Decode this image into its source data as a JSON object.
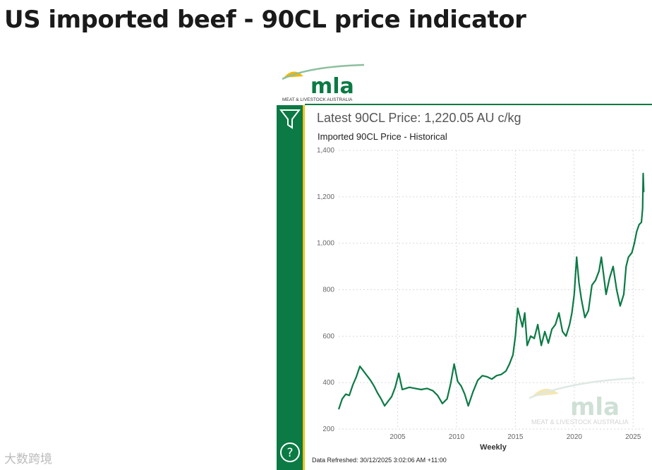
{
  "page": {
    "title": "US imported beef - 90CL price indicator"
  },
  "logo": {
    "name": "mla",
    "subtitle": "MEAT & LIVESTOCK AUSTRALIA"
  },
  "report": {
    "latest_price": "Latest 90CL Price: 1,220.05 AU c/kg",
    "chart_title": "Imported 90CL Price - Historical",
    "refreshed": "Data Refreshed: 30/12/2025 3:02:06 AM +11:00"
  },
  "watermark": {
    "text": "大数跨境"
  },
  "colors": {
    "brand_green": "#0b7a44",
    "accent_yellow": "#f2c318",
    "line": "#0b7a44"
  },
  "icons": {
    "filter": "filter-icon",
    "help": "help-icon"
  },
  "chart_data": {
    "type": "line",
    "title": "Imported 90CL Price - Historical",
    "xlabel": "Weekly",
    "ylabel": "",
    "ylim": [
      200,
      1400
    ],
    "xlim": [
      2000.0,
      2026.0
    ],
    "xticks": [
      2005,
      2010,
      2015,
      2020,
      2025
    ],
    "xtick_labels": [
      "2005",
      "2010",
      "2015",
      "2020",
      "2025"
    ],
    "yticks": [
      200,
      400,
      600,
      800,
      1000,
      1200,
      1400
    ],
    "ytick_labels": [
      "200",
      "400",
      "600",
      "800",
      "1,000",
      "1,200",
      "1,400"
    ],
    "grid": true,
    "series": [
      {
        "name": "90CL Price",
        "x": [
          2000.0,
          2000.3,
          2000.6,
          2000.9,
          2001.2,
          2001.5,
          2001.8,
          2002.1,
          2002.4,
          2002.7,
          2003.0,
          2003.3,
          2003.6,
          2003.9,
          2004.2,
          2004.5,
          2004.8,
          2005.1,
          2005.4,
          2005.7,
          2006.0,
          2006.5,
          2007.0,
          2007.5,
          2008.0,
          2008.4,
          2008.8,
          2009.2,
          2009.5,
          2009.8,
          2010.1,
          2010.4,
          2010.7,
          2011.0,
          2011.4,
          2011.8,
          2012.2,
          2012.6,
          2013.0,
          2013.4,
          2013.8,
          2014.2,
          2014.5,
          2014.8,
          2015.0,
          2015.2,
          2015.4,
          2015.6,
          2015.8,
          2016.0,
          2016.3,
          2016.6,
          2016.9,
          2017.2,
          2017.5,
          2017.8,
          2018.1,
          2018.4,
          2018.7,
          2019.0,
          2019.3,
          2019.6,
          2019.8,
          2020.0,
          2020.2,
          2020.4,
          2020.6,
          2020.9,
          2021.2,
          2021.5,
          2021.8,
          2022.1,
          2022.3,
          2022.5,
          2022.7,
          2023.0,
          2023.3,
          2023.6,
          2023.9,
          2024.2,
          2024.4,
          2024.6,
          2024.9,
          2025.1,
          2025.3,
          2025.5,
          2025.7,
          2025.8,
          2025.85,
          2025.9
        ],
        "values": [
          285,
          330,
          350,
          345,
          390,
          425,
          470,
          450,
          430,
          410,
          385,
          355,
          330,
          300,
          320,
          340,
          380,
          440,
          370,
          375,
          380,
          375,
          370,
          375,
          365,
          345,
          310,
          330,
          395,
          480,
          405,
          385,
          350,
          300,
          360,
          410,
          430,
          425,
          415,
          430,
          435,
          450,
          480,
          520,
          600,
          720,
          680,
          640,
          700,
          560,
          600,
          590,
          650,
          560,
          620,
          570,
          630,
          650,
          700,
          620,
          600,
          650,
          700,
          780,
          940,
          830,
          760,
          680,
          710,
          820,
          840,
          880,
          940,
          860,
          780,
          850,
          900,
          800,
          730,
          780,
          900,
          940,
          960,
          1000,
          1050,
          1080,
          1090,
          1150,
          1300,
          1220
        ]
      }
    ]
  }
}
